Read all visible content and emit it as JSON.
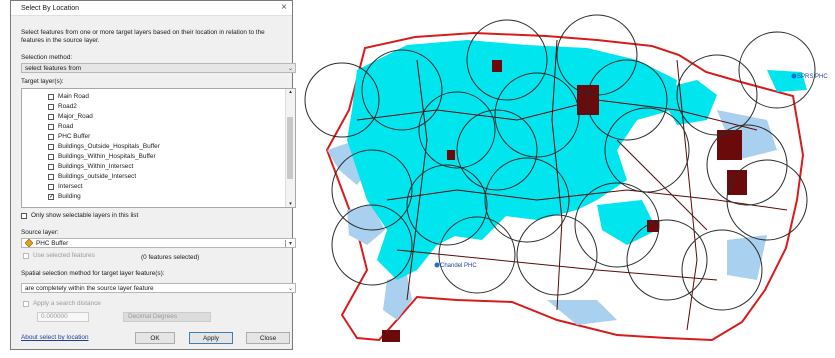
{
  "dialog": {
    "title": "Select By Location",
    "description": "Select features from one or more target layers based on their location in relation to the features in the source layer.",
    "selection_method_label": "Selection method:",
    "selection_method_value": "select features from",
    "target_layers_label": "Target layer(s):",
    "target_layers": [
      {
        "label": "Main Road",
        "checked": false
      },
      {
        "label": "Road2",
        "checked": false
      },
      {
        "label": "Major_Road",
        "checked": false
      },
      {
        "label": "Road",
        "checked": false
      },
      {
        "label": "PHC Buffer",
        "checked": false
      },
      {
        "label": "Buildings_Outside_Hospitals_Buffer",
        "checked": false
      },
      {
        "label": "Buildings_Within_Hospitals_Buffer",
        "checked": false
      },
      {
        "label": "Buildings_Within_Intersect",
        "checked": false
      },
      {
        "label": "Buildings_outside_Intersect",
        "checked": false
      },
      {
        "label": "Intersect",
        "checked": false
      },
      {
        "label": "Building",
        "checked": true
      }
    ],
    "only_selectable_label": "Only show selectable layers in this list",
    "source_layer_label": "Source layer:",
    "source_layer_value": "PHC Buffer",
    "use_selected_label": "Use selected features",
    "features_selected": "(0 features selected)",
    "spatial_method_label": "Spatial selection method for target layer feature(s):",
    "spatial_method_value": "are completely within the source layer feature",
    "search_distance_label": "Apply a search distance",
    "search_distance_value": "0.000000",
    "distance_units": "Decimal Degrees",
    "about_link": "About select by location",
    "ok_label": "OK",
    "apply_label": "Apply",
    "close_label": "Close"
  },
  "map": {
    "labels": [
      "SPRS PHC",
      "Chandel PHC"
    ],
    "colors": {
      "buildings": "#00e5ee",
      "boundary": "#d81b1b",
      "buffers": "#2b2b2b",
      "roads": "#6a0a0a",
      "water": "#9fc8e8"
    }
  }
}
